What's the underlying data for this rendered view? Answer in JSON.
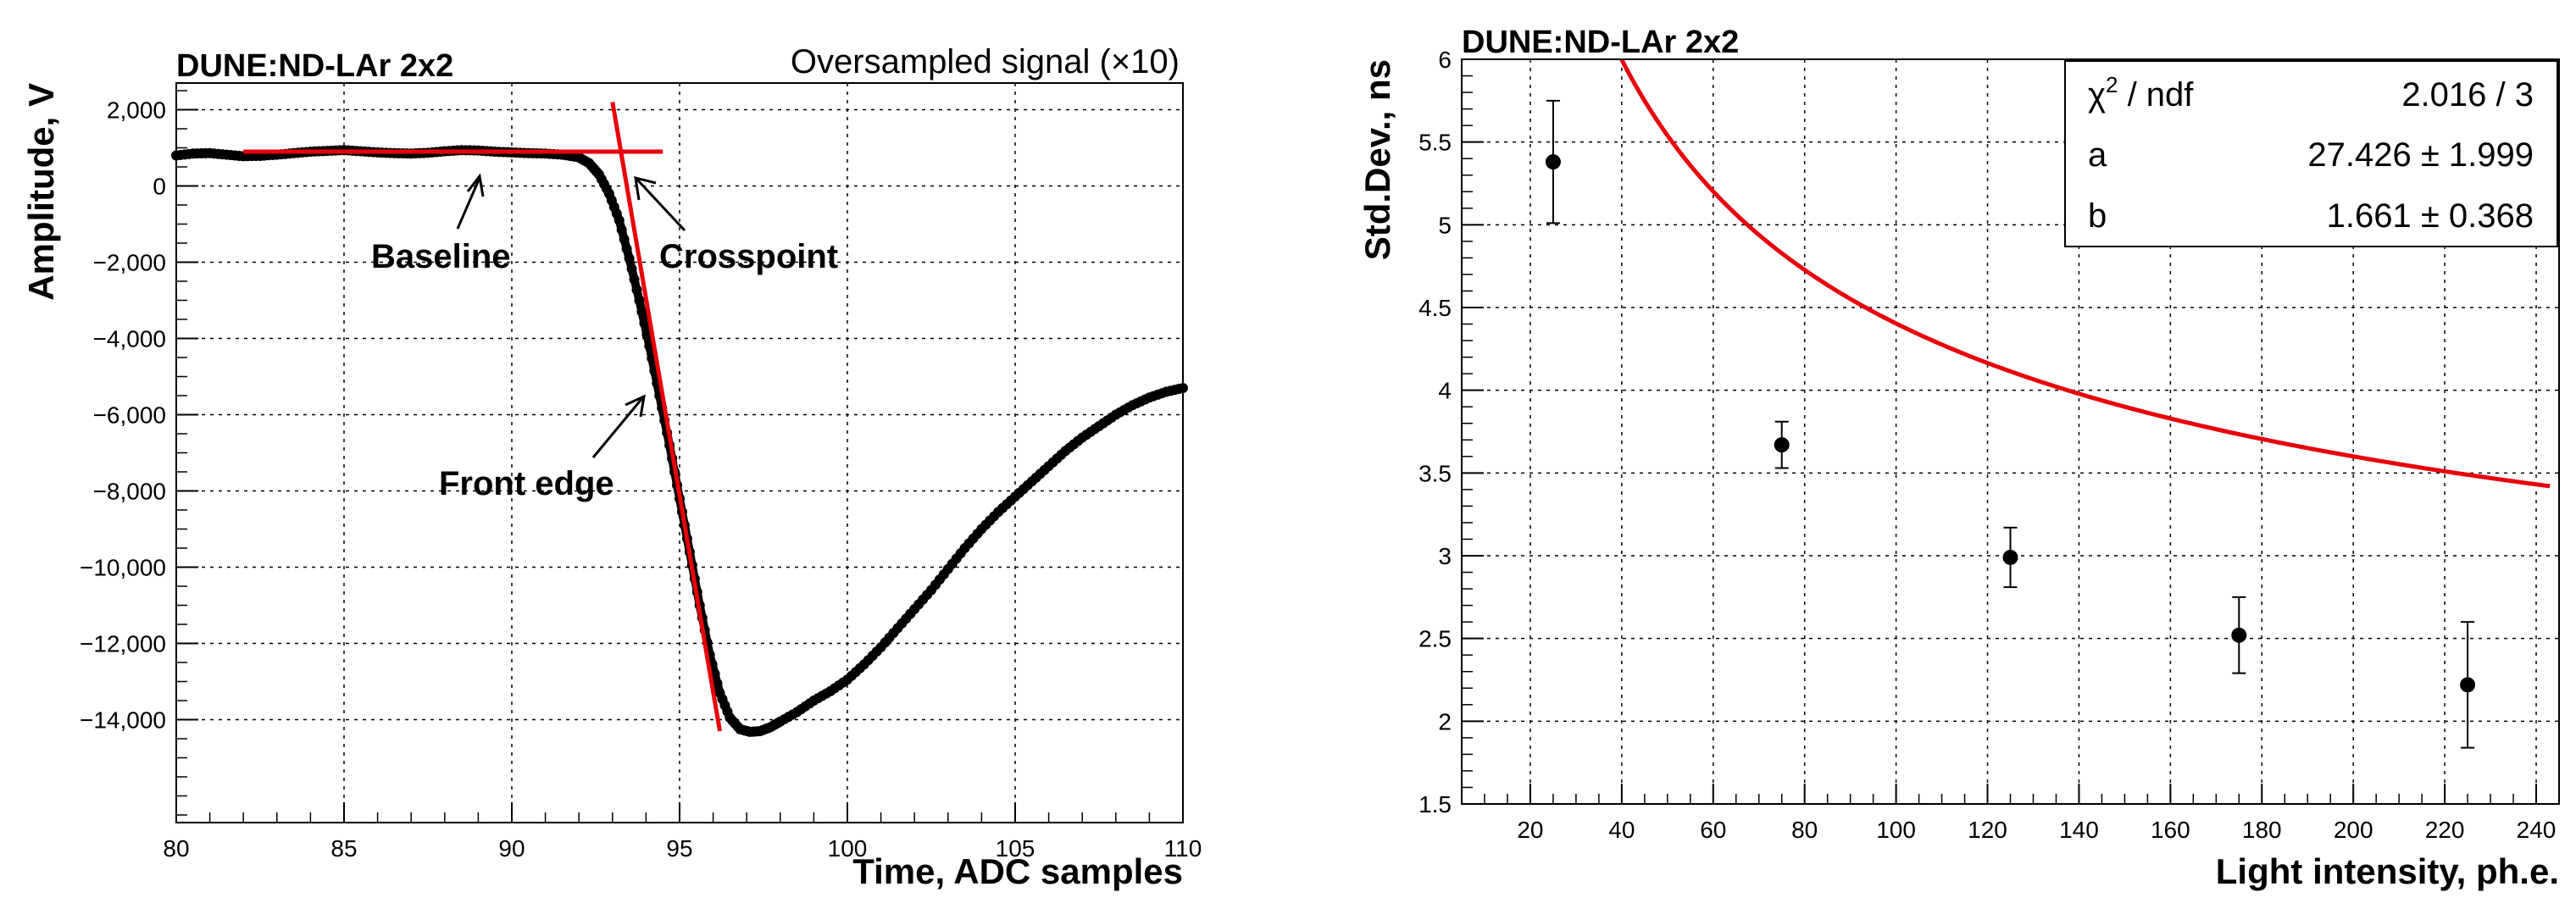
{
  "chart_data": [
    {
      "type": "scatter",
      "title": "DUNE:ND-LAr 2x2",
      "subtitle": "Oversampled signal (×10)",
      "xlabel": "Time, ADC samples",
      "ylabel": "Amplitude, V",
      "xlim": [
        80,
        110
      ],
      "ylim": [
        -16700,
        2700
      ],
      "xticks": [
        80,
        85,
        90,
        95,
        100,
        105,
        110
      ],
      "yticks": [
        2000,
        0,
        -2000,
        -4000,
        -6000,
        -8000,
        -10000,
        -12000,
        -14000
      ],
      "ytick_labels": [
        "2,000",
        "0",
        "−2,000",
        "−4,000",
        "−6,000",
        "−8,000",
        "−10,000",
        "−12,000",
        "−14,000"
      ],
      "series": [
        {
          "name": "signal",
          "x": [
            80.0,
            80.5,
            81.0,
            81.5,
            82.0,
            82.5,
            83.0,
            83.5,
            84.0,
            84.5,
            85.0,
            85.5,
            86.0,
            86.5,
            87.0,
            87.5,
            88.0,
            88.5,
            89.0,
            89.5,
            90.0,
            90.5,
            91.0,
            91.5,
            92.0,
            92.3,
            92.6,
            92.9,
            93.2,
            93.5,
            93.8,
            94.1,
            94.4,
            94.7,
            95.0,
            95.3,
            95.6,
            95.9,
            96.2,
            96.5,
            96.8,
            97.1,
            97.4,
            97.7,
            98.0,
            98.5,
            99.0,
            99.5,
            100.0,
            100.5,
            101.0,
            101.5,
            102.0,
            102.5,
            103.0,
            103.5,
            104.0,
            104.5,
            105.0,
            105.5,
            106.0,
            106.5,
            107.0,
            107.5,
            108.0,
            108.5,
            109.0,
            109.5,
            110.0
          ],
          "y": [
            800,
            850,
            860,
            820,
            780,
            790,
            820,
            860,
            900,
            920,
            940,
            910,
            880,
            860,
            850,
            870,
            910,
            940,
            930,
            900,
            880,
            860,
            850,
            820,
            750,
            600,
            300,
            -200,
            -900,
            -1900,
            -3000,
            -4200,
            -5500,
            -6800,
            -8200,
            -9600,
            -11000,
            -12300,
            -13300,
            -13950,
            -14250,
            -14320,
            -14300,
            -14200,
            -14050,
            -13800,
            -13500,
            -13250,
            -12950,
            -12550,
            -12100,
            -11600,
            -11100,
            -10600,
            -10050,
            -9500,
            -9000,
            -8550,
            -8150,
            -7750,
            -7350,
            -6950,
            -6600,
            -6300,
            -6000,
            -5750,
            -5550,
            -5400,
            -5300
          ]
        }
      ],
      "fits": [
        {
          "name": "baseline",
          "x": [
            82,
            94.5
          ],
          "y": [
            900,
            900
          ]
        },
        {
          "name": "front edge",
          "x": [
            93.0,
            96.2
          ],
          "y": [
            2200,
            -14300
          ]
        }
      ],
      "annotations": [
        "Baseline",
        "Crosspoint",
        "Front edge"
      ]
    },
    {
      "type": "scatter",
      "title": "DUNE:ND-LAr 2x2",
      "xlabel": "Light intensity, ph.e.",
      "ylabel": "Std.Dev., ns",
      "xlim": [
        5,
        245
      ],
      "ylim": [
        1.5,
        6
      ],
      "xticks": [
        20,
        40,
        60,
        80,
        100,
        120,
        140,
        160,
        180,
        200,
        220,
        240
      ],
      "yticks": [
        1.5,
        2,
        2.5,
        3,
        3.5,
        4,
        4.5,
        5,
        5.5,
        6
      ],
      "points": {
        "x": [
          25,
          75,
          125,
          175,
          225
        ],
        "y": [
          5.38,
          3.67,
          2.99,
          2.52,
          2.22
        ],
        "err": [
          0.37,
          0.14,
          0.18,
          0.23,
          0.38
        ]
      },
      "fit": {
        "formula": "a/sqrt(x) + b",
        "a": 27.426,
        "b": 1.661,
        "x_start": 24,
        "x_end": 243
      },
      "stats_box": {
        "chi2_label": "χ",
        "chi2_sup": "2",
        "chi2_rest": " / ndf",
        "chi2_value": "2.016 / 3",
        "a_label": "a",
        "a_value": "27.426 ± 1.999",
        "b_label": "b",
        "b_value": "1.661 ± 0.368"
      }
    }
  ]
}
